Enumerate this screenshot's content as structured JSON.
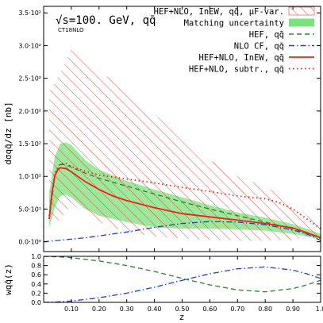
{
  "chart_data": [
    {
      "type": "line",
      "title": "√s=100. GeV, qq̄",
      "subtitle": "CT18NLO",
      "xlabel": "z",
      "ylabel": "dσqq̄/dz [nb]",
      "xlim": [
        0.0,
        1.0
      ],
      "ylim": [
        -15,
        360
      ],
      "grid": false,
      "legend_position": "top-right",
      "x_ticks": [
        0.1,
        0.2,
        0.3,
        0.4,
        0.5,
        0.6,
        0.7,
        0.8,
        0.9,
        1.0
      ],
      "x_tick_labels": [
        "0.10",
        "0.20",
        "0.30",
        "0.40",
        "0.50",
        "0.60",
        "0.70",
        "0.80",
        "0.90",
        "1.0"
      ],
      "y_ticks": [
        0,
        50,
        100,
        150,
        200,
        250,
        300,
        350
      ],
      "y_tick_labels": [
        "0.0·10⁰",
        "5.0·10¹",
        "1.0·10²",
        "1.5·10²",
        "2.0·10²",
        "2.5·10²",
        "3.0·10²",
        "3.5·10²"
      ],
      "bands": [
        {
          "name": "HEF+NLO, InEW, qq̄, μF-var.",
          "style": "hatch",
          "color": "#e8392a",
          "x": [
            0.02,
            0.05,
            0.08,
            0.1,
            0.15,
            0.2,
            0.3,
            0.4,
            0.5,
            0.6,
            0.7,
            0.8,
            0.9,
            0.95,
            1.0
          ],
          "lower": [
            40,
            30,
            45,
            60,
            40,
            30,
            15,
            8,
            5,
            3,
            2,
            2,
            3,
            8,
            10
          ],
          "upper": [
            230,
            250,
            275,
            295,
            285,
            262,
            230,
            195,
            160,
            125,
            100,
            85,
            60,
            40,
            30
          ]
        },
        {
          "name": "Matching uncertainty",
          "style": "fill",
          "color": "#7ee07e",
          "x": [
            0.02,
            0.04,
            0.06,
            0.08,
            0.1,
            0.15,
            0.2,
            0.3,
            0.4,
            0.5,
            0.6,
            0.7,
            0.8,
            0.9,
            0.95,
            1.0
          ],
          "lower": [
            22,
            52,
            70,
            72,
            68,
            50,
            40,
            30,
            22,
            20,
            20,
            19,
            17,
            12,
            8,
            4
          ],
          "upper": [
            75,
            130,
            150,
            152,
            148,
            125,
            110,
            93,
            80,
            68,
            56,
            45,
            37,
            27,
            20,
            12
          ]
        }
      ],
      "series": [
        {
          "name": "HEF, qq̄",
          "style": "dashed",
          "color": "#2e7d32",
          "x": [
            0.02,
            0.04,
            0.06,
            0.08,
            0.1,
            0.15,
            0.2,
            0.3,
            0.4,
            0.5,
            0.6,
            0.7,
            0.8,
            0.9,
            0.95,
            1.0
          ],
          "y": [
            35,
            100,
            118,
            118,
            114,
            105,
            97,
            85,
            73,
            61,
            50,
            40,
            30,
            20,
            13,
            5
          ]
        },
        {
          "name": "NLO CF, qq̄",
          "style": "dashdot",
          "color": "#1f3fd1",
          "x": [
            0.0,
            0.05,
            0.1,
            0.15,
            0.2,
            0.3,
            0.4,
            0.5,
            0.6,
            0.7,
            0.8,
            0.9,
            0.95,
            1.0
          ],
          "y": [
            0,
            2,
            4,
            6,
            9,
            15,
            22,
            28,
            31,
            30,
            26,
            18,
            12,
            2
          ]
        },
        {
          "name": "HEF+NLO, InEW, qq̄",
          "style": "solid",
          "color": "#e8251a",
          "x": [
            0.02,
            0.03,
            0.04,
            0.05,
            0.06,
            0.08,
            0.1,
            0.15,
            0.2,
            0.25,
            0.3,
            0.4,
            0.5,
            0.6,
            0.7,
            0.8,
            0.9,
            0.95,
            1.0
          ],
          "y": [
            35,
            75,
            100,
            110,
            113,
            112,
            107,
            92,
            80,
            70,
            63,
            52,
            43,
            38,
            33,
            28,
            21,
            14,
            6
          ]
        },
        {
          "name": "HEF+NLO, subtr., qq̄",
          "style": "dotted",
          "color": "#e8251a",
          "x": [
            0.02,
            0.04,
            0.06,
            0.08,
            0.1,
            0.15,
            0.2,
            0.3,
            0.4,
            0.5,
            0.6,
            0.7,
            0.8,
            0.85,
            0.9,
            0.95,
            1.0
          ],
          "y": [
            40,
            105,
            120,
            120,
            115,
            108,
            102,
            96,
            90,
            83,
            77,
            70,
            66,
            60,
            50,
            35,
            20
          ]
        }
      ]
    },
    {
      "type": "line",
      "xlabel": "z",
      "ylabel": "wqq̄(z)",
      "xlim": [
        0.0,
        1.0
      ],
      "ylim": [
        0.0,
        1.0
      ],
      "x_ticks": [
        0.1,
        0.2,
        0.3,
        0.4,
        0.5,
        0.6,
        0.7,
        0.8,
        0.9,
        1.0
      ],
      "x_tick_labels": [
        "0.10",
        "0.20",
        "0.30",
        "0.40",
        "0.50",
        "0.60",
        "0.70",
        "0.80",
        "0.90",
        "1.0"
      ],
      "y_ticks": [
        0.0,
        0.2,
        0.4,
        0.6,
        0.8,
        1.0
      ],
      "y_tick_labels": [
        "0.0",
        "0.2",
        "0.4",
        "0.6",
        "0.8",
        "1.0"
      ],
      "series": [
        {
          "style": "dashed",
          "color": "#2e7d32",
          "x": [
            0.0,
            0.05,
            0.1,
            0.2,
            0.3,
            0.4,
            0.5,
            0.6,
            0.7,
            0.8,
            0.9,
            0.95,
            1.0
          ],
          "y": [
            1.0,
            0.99,
            0.97,
            0.9,
            0.8,
            0.67,
            0.52,
            0.38,
            0.27,
            0.23,
            0.3,
            0.38,
            0.48
          ]
        },
        {
          "style": "dashdot",
          "color": "#1f3fd1",
          "x": [
            0.0,
            0.05,
            0.1,
            0.2,
            0.3,
            0.4,
            0.5,
            0.6,
            0.7,
            0.8,
            0.9,
            0.95,
            1.0
          ],
          "y": [
            0.0,
            0.01,
            0.03,
            0.1,
            0.2,
            0.33,
            0.48,
            0.62,
            0.73,
            0.77,
            0.7,
            0.62,
            0.52
          ]
        }
      ]
    }
  ]
}
